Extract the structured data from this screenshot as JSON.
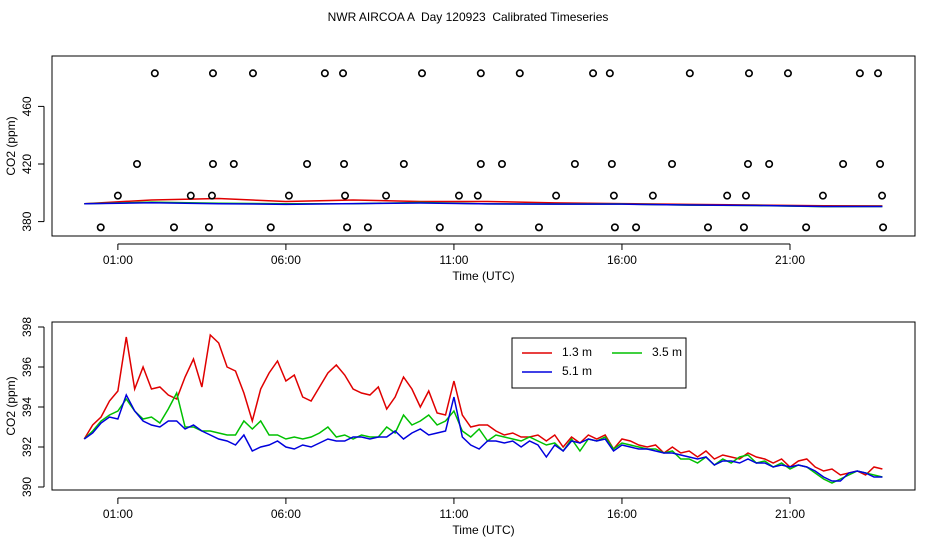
{
  "chart_data": [
    {
      "type": "line",
      "title": "NWR AIRCOA A  Day 120923  Calibrated Timeseries",
      "x_label": "Time (UTC)",
      "y_label": "CO2 (ppm)",
      "xlim": [
        -0.96,
        24.72
      ],
      "xticks": [
        {
          "value": 1,
          "label": "01:00"
        },
        {
          "value": 6,
          "label": "06:00"
        },
        {
          "value": 11,
          "label": "11:00"
        },
        {
          "value": 16,
          "label": "16:00"
        },
        {
          "value": 21,
          "label": "21:00"
        }
      ],
      "ylim": [
        370,
        495
      ],
      "yticks": [
        380,
        420,
        460
      ],
      "x": [
        0,
        2,
        4,
        6,
        8,
        10,
        12,
        14,
        16,
        18,
        20,
        22,
        23.75
      ],
      "series": [
        {
          "color": "#e00000",
          "values": [
            392.4,
            395,
            396,
            394,
            395,
            394,
            394,
            393,
            392.5,
            392,
            391.5,
            391,
            390.9
          ]
        },
        {
          "color": "#00c000",
          "values": [
            392.4,
            393.5,
            392.7,
            392.4,
            392.4,
            393.3,
            392.3,
            392.2,
            392.2,
            391.4,
            391.2,
            390.4,
            390.5
          ]
        },
        {
          "color": "#0000dd",
          "values": [
            392.4,
            393.1,
            392.4,
            392,
            392.5,
            392.9,
            392.3,
            392.1,
            392.1,
            391.5,
            391.2,
            390.5,
            390.5
          ]
        }
      ],
      "points": {
        "color": "#000000",
        "x": [
          2.1,
          3.83,
          5.02,
          7.16,
          7.7,
          10.05,
          11.8,
          12.96,
          15.14,
          15.64,
          18.02,
          19.78,
          20.94,
          23.08,
          23.62,
          1.57,
          3.83,
          4.45,
          6.63,
          7.73,
          9.51,
          11.8,
          12.43,
          14.6,
          15.7,
          17.49,
          19.75,
          20.38,
          22.58,
          23.68,
          1.0,
          3.17,
          3.8,
          6.09,
          7.76,
          8.98,
          11.15,
          11.71,
          14.04,
          15.76,
          16.92,
          19.13,
          19.69,
          21.98,
          23.74,
          0.49,
          2.67,
          3.71,
          5.55,
          7.82,
          8.44,
          10.58,
          11.74,
          13.53,
          15.79,
          16.42,
          18.56,
          19.63,
          21.48,
          23.77
        ],
        "y": [
          483,
          483,
          483,
          483,
          483,
          483,
          483,
          483,
          483,
          483,
          483,
          483,
          483,
          483,
          483,
          420,
          420,
          420,
          420,
          420,
          420,
          420,
          420,
          420,
          420,
          420,
          420,
          420,
          420,
          420,
          398,
          398,
          398,
          398,
          398,
          398,
          398,
          398,
          398,
          398,
          398,
          398,
          398,
          398,
          398,
          376,
          376,
          376,
          376,
          376,
          376,
          376,
          376,
          376,
          376,
          376,
          376,
          376,
          376,
          376
        ]
      }
    },
    {
      "type": "line",
      "x_label": "Time (UTC)",
      "y_label": "CO2 (ppm)",
      "xlim": [
        -0.96,
        24.72
      ],
      "xticks": [
        {
          "value": 1,
          "label": "01:00"
        },
        {
          "value": 6,
          "label": "06:00"
        },
        {
          "value": 11,
          "label": "11:00"
        },
        {
          "value": 16,
          "label": "16:00"
        },
        {
          "value": 21,
          "label": "21:00"
        }
      ],
      "ylim": [
        389.85,
        398.25
      ],
      "yticks": [
        390,
        392,
        394,
        396,
        398
      ],
      "legend": "top-right",
      "x": [
        0,
        0.25,
        0.5,
        0.75,
        1,
        1.25,
        1.5,
        1.75,
        2,
        2.25,
        2.5,
        2.75,
        3,
        3.25,
        3.5,
        3.75,
        4,
        4.25,
        4.5,
        4.75,
        5,
        5.25,
        5.5,
        5.75,
        6,
        6.25,
        6.5,
        6.75,
        7,
        7.25,
        7.5,
        7.75,
        8,
        8.25,
        8.5,
        8.75,
        9,
        9.25,
        9.5,
        9.75,
        10,
        10.25,
        10.5,
        10.75,
        11,
        11.25,
        11.5,
        11.75,
        12,
        12.25,
        12.5,
        12.75,
        13,
        13.25,
        13.5,
        13.75,
        14,
        14.25,
        14.5,
        14.75,
        15,
        15.25,
        15.5,
        15.75,
        16,
        16.25,
        16.5,
        16.75,
        17,
        17.25,
        17.5,
        17.75,
        18,
        18.25,
        18.5,
        18.75,
        19,
        19.25,
        19.5,
        19.75,
        20,
        20.25,
        20.5,
        20.75,
        21,
        21.25,
        21.5,
        21.75,
        22,
        22.25,
        22.5,
        22.75,
        23,
        23.25,
        23.5,
        23.75
      ],
      "series": [
        {
          "name": "1.3 m",
          "color": "#e00000",
          "values": [
            392.4,
            393.1,
            393.5,
            394.3,
            394.8,
            397.5,
            394.9,
            396.0,
            394.9,
            395.0,
            394.6,
            394.4,
            395.5,
            396.4,
            395.0,
            397.6,
            397.2,
            396.0,
            395.8,
            394.7,
            393.3,
            394.9,
            395.7,
            396.3,
            395.3,
            395.6,
            394.5,
            394.3,
            395.0,
            395.7,
            396.1,
            395.6,
            394.9,
            394.7,
            394.6,
            395.0,
            393.9,
            394.5,
            395.5,
            394.9,
            394.0,
            394.8,
            393.7,
            393.6,
            395.3,
            393.6,
            393.0,
            393.1,
            393.1,
            392.8,
            392.6,
            392.7,
            392.5,
            392.5,
            392.6,
            392.3,
            392.6,
            392.0,
            392.5,
            392.2,
            392.6,
            392.4,
            392.6,
            391.9,
            392.4,
            392.3,
            392.1,
            392.0,
            392.1,
            391.7,
            392.0,
            391.7,
            391.8,
            391.5,
            391.8,
            391.4,
            391.6,
            391.5,
            391.4,
            391.7,
            391.5,
            391.4,
            391.2,
            391.4,
            391.0,
            391.3,
            391.4,
            391.0,
            390.8,
            390.9,
            390.6,
            390.7,
            390.8,
            390.6,
            391.0,
            390.9
          ]
        },
        {
          "name": "3.5 m",
          "color": "#00c000",
          "values": [
            392.4,
            392.8,
            393.3,
            393.6,
            393.8,
            394.4,
            393.8,
            393.4,
            393.5,
            393.2,
            393.9,
            394.7,
            393.0,
            393.0,
            392.8,
            392.8,
            392.7,
            392.6,
            392.6,
            393.3,
            392.9,
            393.3,
            392.6,
            392.6,
            392.4,
            392.5,
            392.4,
            392.5,
            392.7,
            393.0,
            392.5,
            392.6,
            392.4,
            392.6,
            392.5,
            392.5,
            393.0,
            392.7,
            393.6,
            393.1,
            393.3,
            393.6,
            393.1,
            393.3,
            393.8,
            392.8,
            392.5,
            392.9,
            392.3,
            392.6,
            392.5,
            392.4,
            392.3,
            392.5,
            392.3,
            392.1,
            392.2,
            391.8,
            392.4,
            391.8,
            392.4,
            392.3,
            392.5,
            391.9,
            392.2,
            392.1,
            392.0,
            391.9,
            391.9,
            391.7,
            391.8,
            391.4,
            391.4,
            391.2,
            391.5,
            391.1,
            391.4,
            391.2,
            391.5,
            391.6,
            391.2,
            391.3,
            391.0,
            391.2,
            390.9,
            391.1,
            391.0,
            390.7,
            390.4,
            390.2,
            390.4,
            390.6,
            390.8,
            390.7,
            390.6,
            390.5
          ]
        },
        {
          "name": "5.1 m",
          "color": "#0000dd",
          "values": [
            392.4,
            392.7,
            393.2,
            393.5,
            393.4,
            394.6,
            393.8,
            393.3,
            393.1,
            393.0,
            393.3,
            393.3,
            392.9,
            393.1,
            392.8,
            392.6,
            392.4,
            392.3,
            392.1,
            392.6,
            391.8,
            392.0,
            392.1,
            392.3,
            392.0,
            391.9,
            392.1,
            392.0,
            392.2,
            392.4,
            392.3,
            392.3,
            392.5,
            392.5,
            392.4,
            392.5,
            392.5,
            392.8,
            392.4,
            392.7,
            392.9,
            392.6,
            392.7,
            392.8,
            394.5,
            392.5,
            392.1,
            391.9,
            392.3,
            392.3,
            392.2,
            392.3,
            392.0,
            392.3,
            392.1,
            391.5,
            392.1,
            391.8,
            392.3,
            392.2,
            392.4,
            392.3,
            392.4,
            391.8,
            392.1,
            392.0,
            391.9,
            391.9,
            391.8,
            391.7,
            391.7,
            391.6,
            391.5,
            391.4,
            391.5,
            391.1,
            391.3,
            391.3,
            391.2,
            391.4,
            391.2,
            391.2,
            391.0,
            391.1,
            391.0,
            391.1,
            391.0,
            390.8,
            390.5,
            390.3,
            390.3,
            390.7,
            390.8,
            390.7,
            390.5,
            390.5
          ]
        }
      ]
    }
  ]
}
